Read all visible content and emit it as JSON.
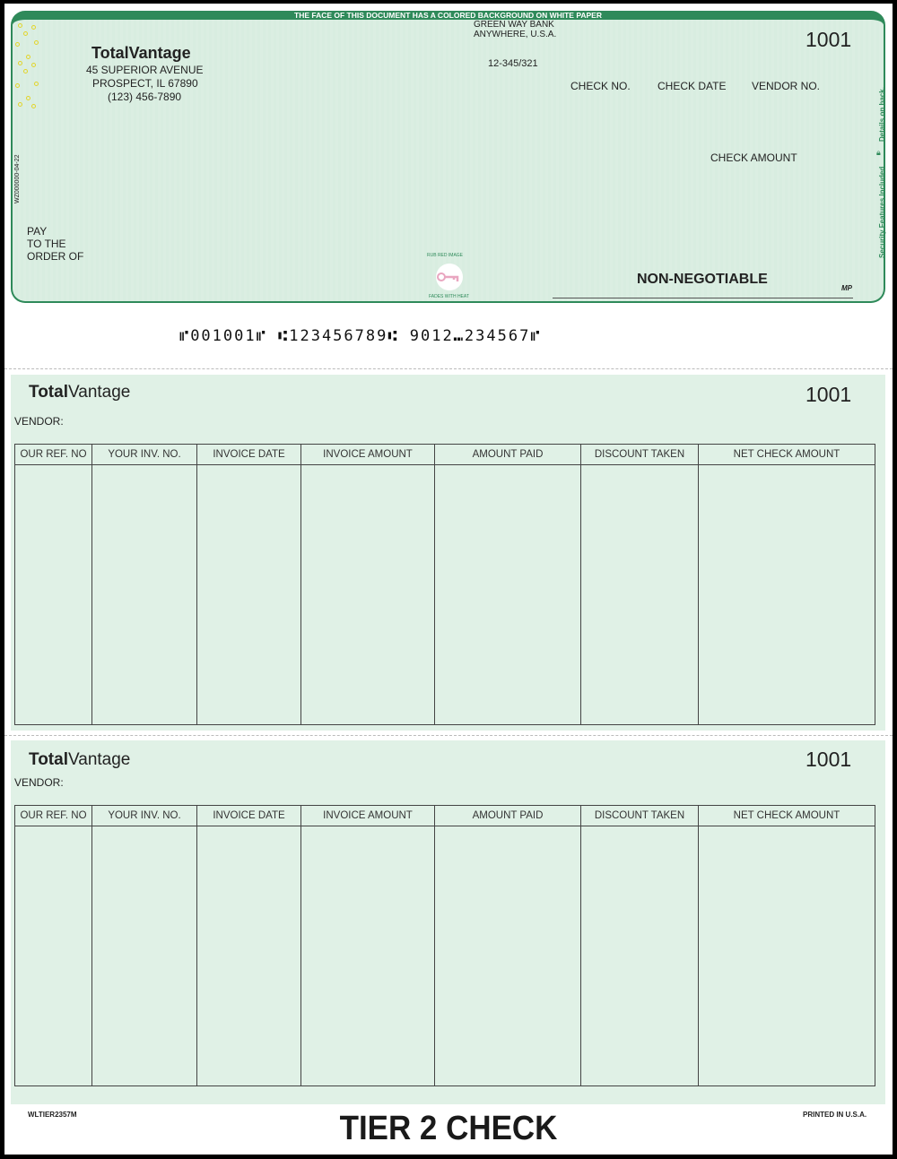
{
  "check": {
    "banner": "THE FACE OF THIS DOCUMENT HAS A COLORED BACKGROUND ON WHITE PAPER",
    "company": {
      "name": "TotalVantage",
      "address1": "45 SUPERIOR AVENUE",
      "address2": "PROSPECT, IL 67890",
      "phone": "(123) 456-7890"
    },
    "bank": {
      "name": "GREEN WAY BANK",
      "location": "ANYWHERE, U.S.A.",
      "fraction": "12-345/321"
    },
    "check_number": "1001",
    "labels": {
      "check_no": "CHECK NO.",
      "check_date": "CHECK DATE",
      "vendor_no": "VENDOR NO.",
      "check_amount": "CHECK AMOUNT",
      "pay1": "PAY",
      "pay2": "TO THE",
      "pay3": "ORDER OF",
      "non_negotiable": "NON-NEGOTIABLE",
      "mp": "MP"
    },
    "side_code": "WZ000000-04-22",
    "security_text": "Security Features Included",
    "details_text": "Details on back.",
    "seal": {
      "top": "RUB RED IMAGE",
      "bottom": "FADES WITH HEAT"
    },
    "accent_color": "#2f8a5a"
  },
  "micr": "⑈001001⑈ ⑆123456789⑆ 9012⑉234567⑈",
  "stubs": [
    {
      "brand_a": "Total",
      "brand_b": "Vantage",
      "number": "1001",
      "vendor_label": "VENDOR:"
    },
    {
      "brand_a": "Total",
      "brand_b": "Vantage",
      "number": "1001",
      "vendor_label": "VENDOR:"
    }
  ],
  "columns": [
    "OUR REF. NO",
    "YOUR INV. NO.",
    "INVOICE DATE",
    "INVOICE AMOUNT",
    "AMOUNT PAID",
    "DISCOUNT TAKEN",
    "NET CHECK AMOUNT"
  ],
  "footer": {
    "form_code": "WLTIER2357M",
    "title": "TIER 2 CHECK",
    "printed": "PRINTED IN U.S.A."
  }
}
